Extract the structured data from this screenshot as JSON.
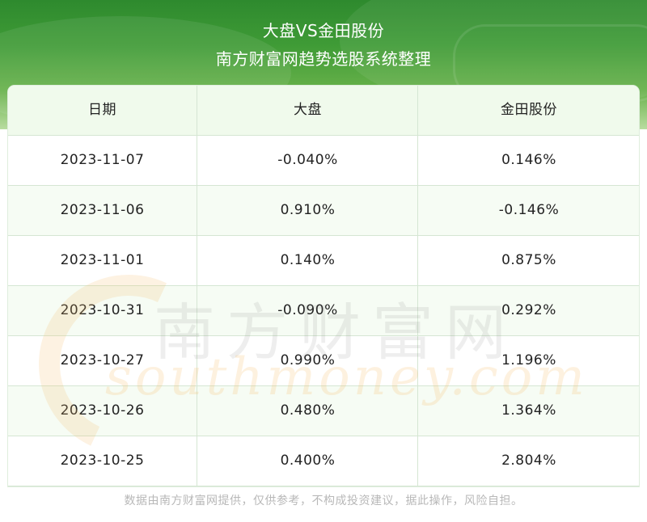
{
  "header": {
    "title": "大盘VS金田股份",
    "subtitle": "南方财富网趋势选股系统整理"
  },
  "table": {
    "columns": [
      "日期",
      "大盘",
      "金田股份"
    ],
    "rows": [
      [
        "2023-11-07",
        "-0.040%",
        "0.146%"
      ],
      [
        "2023-11-06",
        "0.910%",
        "-0.146%"
      ],
      [
        "2023-11-01",
        "0.140%",
        "0.875%"
      ],
      [
        "2023-10-31",
        "-0.090%",
        "0.292%"
      ],
      [
        "2023-10-27",
        "0.990%",
        "1.196%"
      ],
      [
        "2023-10-26",
        "0.480%",
        "1.364%"
      ],
      [
        "2023-10-25",
        "0.400%",
        "2.804%"
      ]
    ]
  },
  "watermark": {
    "cn": "南方财富网",
    "en": "southmoney.com"
  },
  "footer": {
    "disclaimer": "数据由南方财富网提供，仅供参考，不构成投资建议，据此操作，风险自担。"
  },
  "colors": {
    "header_green": "#3f9b36",
    "header_row_bg": "#f0faec",
    "alt_row_bg": "#f6fcf4",
    "grid_line": "#d5e6d3"
  }
}
